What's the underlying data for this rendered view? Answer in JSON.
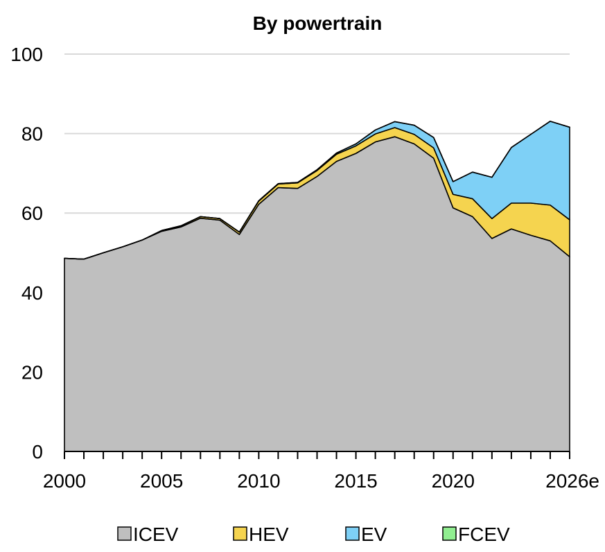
{
  "chart_data": {
    "type": "area",
    "stacked": true,
    "title": "By powertrain",
    "xlabel": "",
    "ylabel": "",
    "ylim": [
      0,
      100
    ],
    "xlim": [
      2000,
      2026
    ],
    "y_ticks": [
      "0",
      "20",
      "40",
      "60",
      "80",
      "100"
    ],
    "x_ticks": [
      {
        "x": 2000,
        "label": "2000"
      },
      {
        "x": 2005,
        "label": "2005"
      },
      {
        "x": 2010,
        "label": "2010"
      },
      {
        "x": 2015,
        "label": "2015"
      },
      {
        "x": 2020,
        "label": "2020"
      },
      {
        "x": 2026,
        "label": "2026e"
      }
    ],
    "grid": "horizontal",
    "legend_position": "bottom",
    "x": [
      2000,
      2001,
      2002,
      2003,
      2004,
      2005,
      2006,
      2007,
      2008,
      2009,
      2010,
      2011,
      2012,
      2013,
      2014,
      2015,
      2016,
      2017,
      2018,
      2019,
      2020,
      2021,
      2022,
      2023,
      2024,
      2025,
      2026
    ],
    "series": [
      {
        "name": "ICEV",
        "color": "#bfbfbf",
        "values": [
          48.6,
          48.4,
          50.0,
          51.5,
          53.2,
          55.4,
          56.5,
          58.7,
          58.2,
          54.6,
          62.2,
          66.4,
          66.2,
          69.2,
          73.0,
          75.0,
          77.9,
          79.2,
          77.4,
          73.8,
          61.3,
          59.1,
          53.6,
          56.0,
          54.4,
          53.0,
          49.0
        ]
      },
      {
        "name": "HEV",
        "color": "#f5d44f",
        "values": [
          0.0,
          0.0,
          0.0,
          0.0,
          0.0,
          0.2,
          0.3,
          0.4,
          0.4,
          0.6,
          0.8,
          0.9,
          1.4,
          1.5,
          1.8,
          1.9,
          2.0,
          2.3,
          2.4,
          2.6,
          3.4,
          4.5,
          5.0,
          6.5,
          8.1,
          9.0,
          9.3
        ]
      },
      {
        "name": "EV",
        "color": "#7ed0f6",
        "values": [
          0.0,
          0.0,
          0.0,
          0.0,
          0.0,
          0.0,
          0.0,
          0.0,
          0.0,
          0.0,
          0.1,
          0.1,
          0.1,
          0.2,
          0.3,
          0.5,
          1.0,
          1.5,
          2.3,
          2.6,
          3.2,
          6.7,
          10.4,
          14.0,
          17.3,
          21.1,
          23.3
        ]
      },
      {
        "name": "FCEV",
        "color": "#90ee90",
        "values": [
          0,
          0,
          0,
          0,
          0,
          0,
          0,
          0,
          0,
          0,
          0,
          0,
          0,
          0,
          0,
          0,
          0,
          0,
          0,
          0,
          0,
          0,
          0,
          0,
          0,
          0,
          0
        ]
      }
    ]
  }
}
